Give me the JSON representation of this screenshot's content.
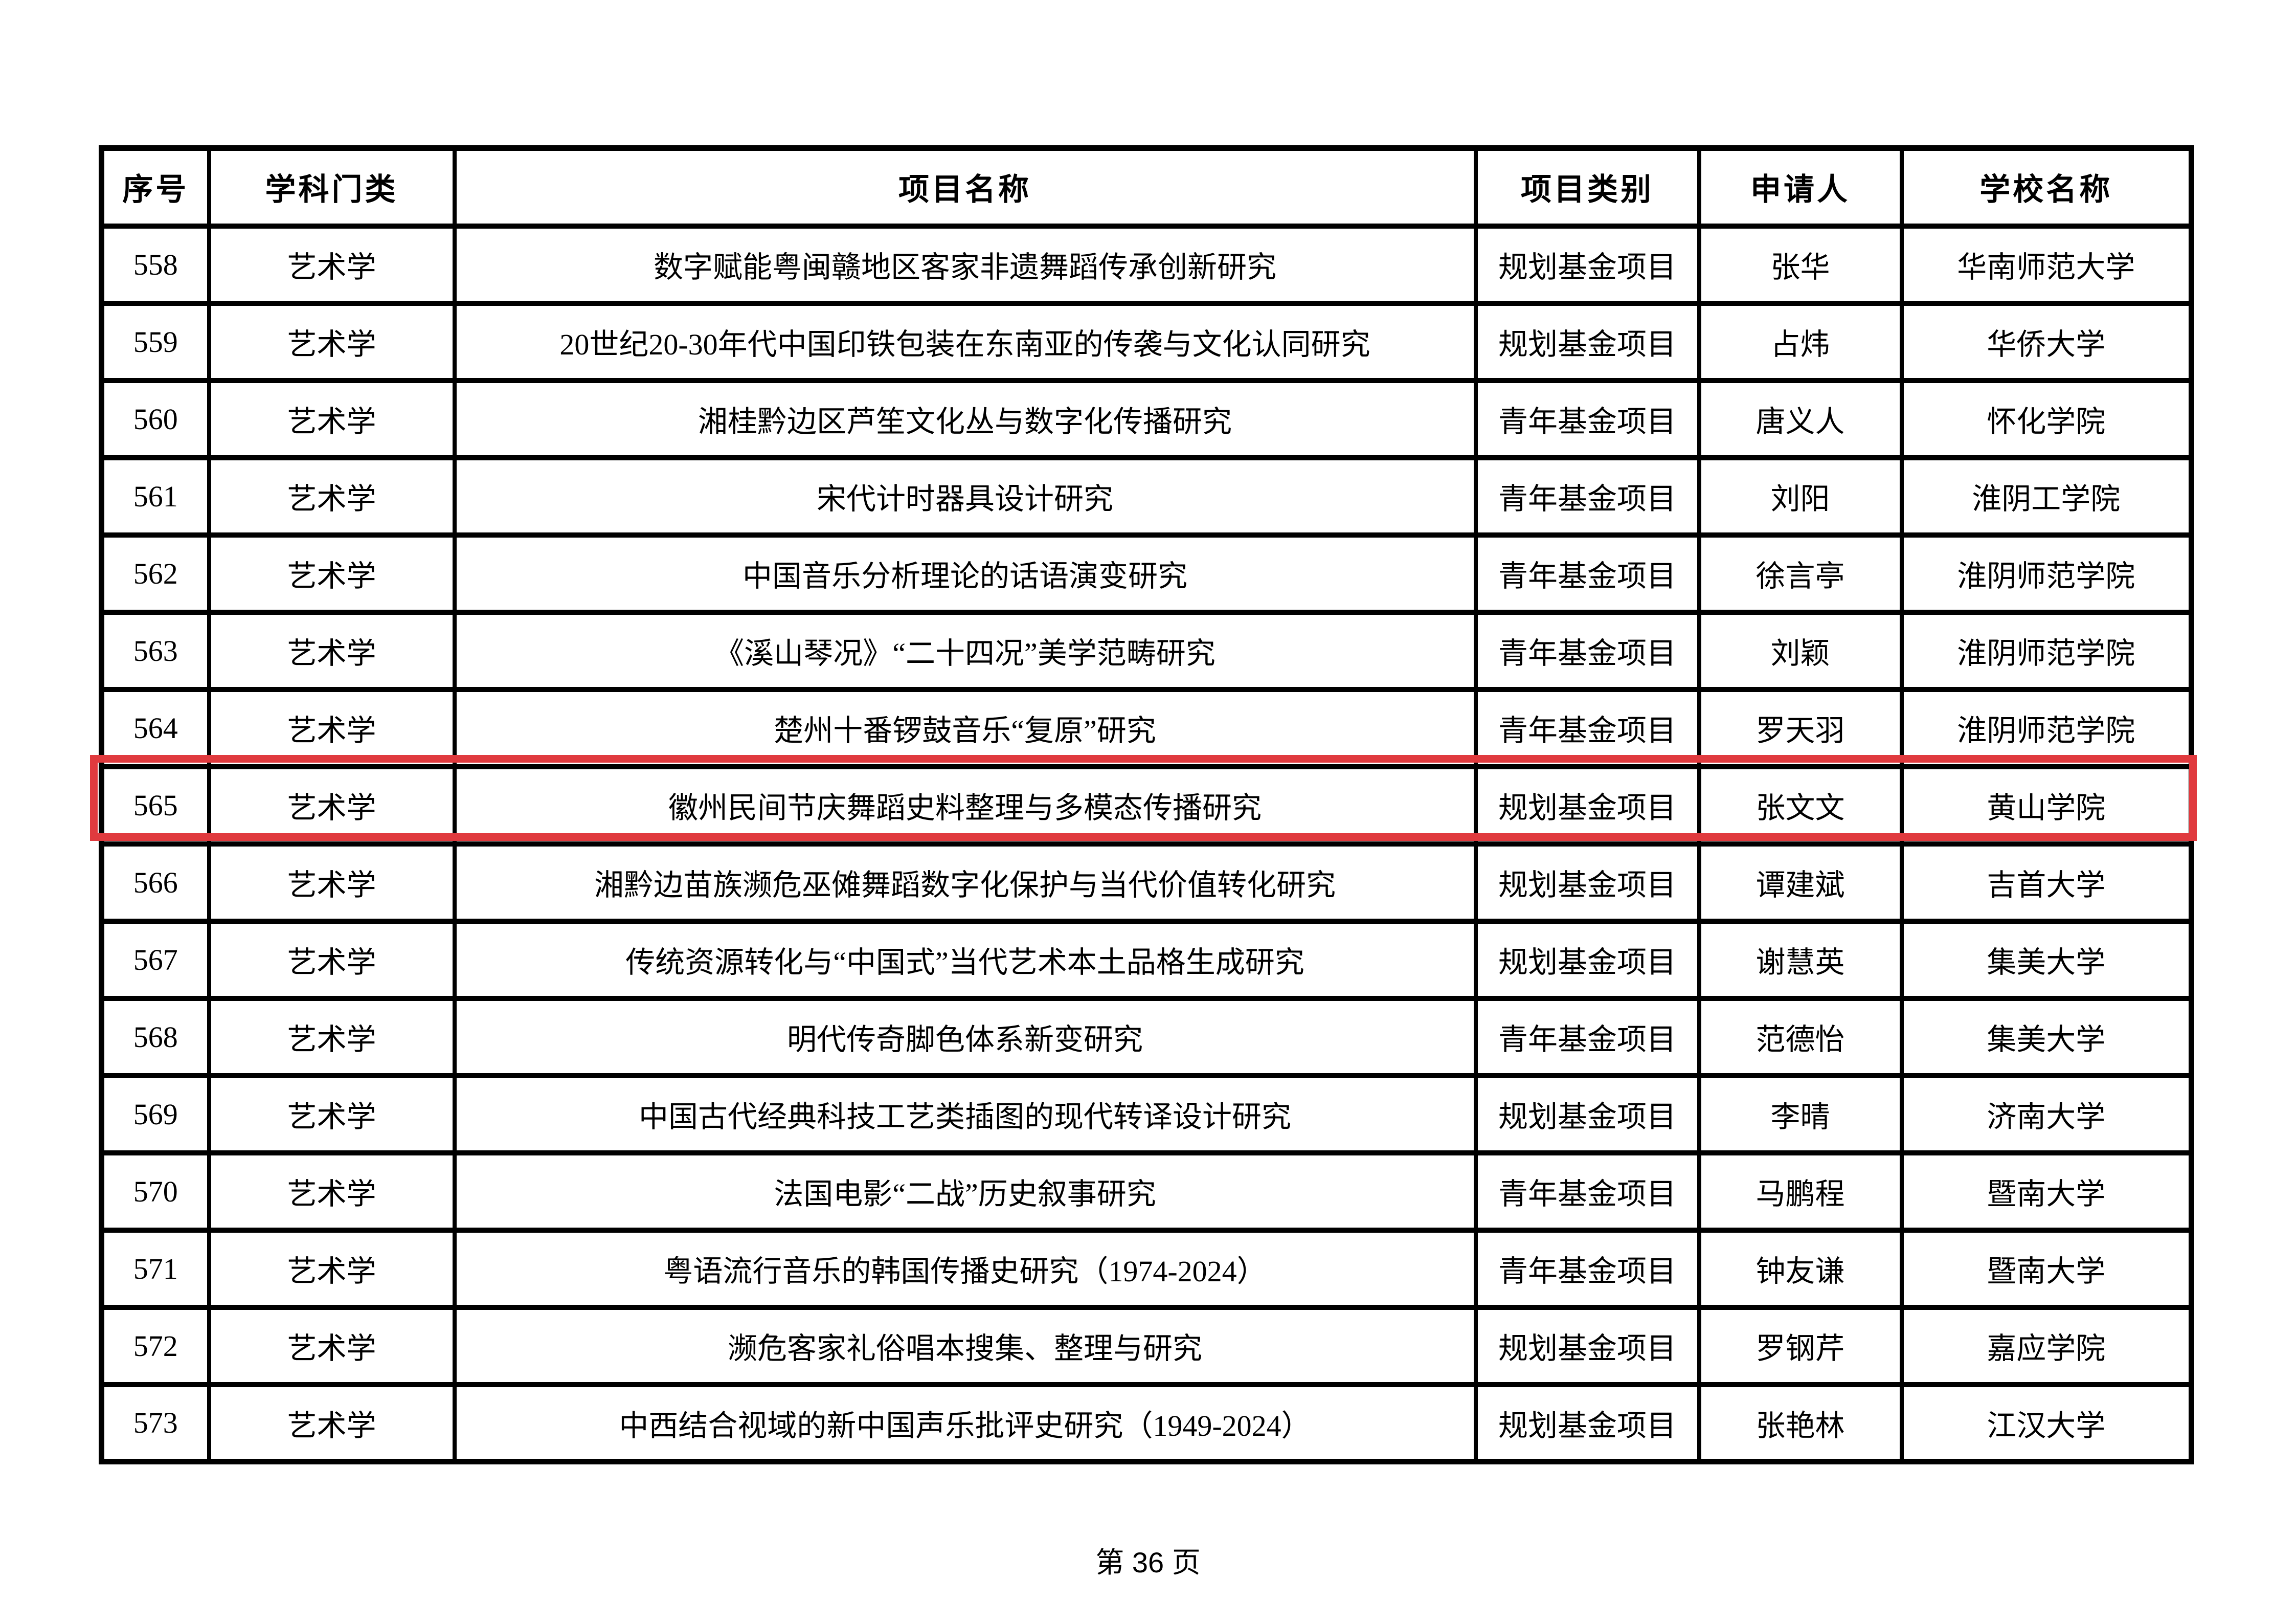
{
  "page": {
    "background_color": "#ffffff",
    "footer_text": "第 36 页"
  },
  "highlight": {
    "color": "#e03a3e",
    "highlighted_row_no": "565"
  },
  "table": {
    "headers": [
      "序号",
      "学科门类",
      "项目名称",
      "项目类别",
      "申请人",
      "学校名称"
    ],
    "rows": [
      {
        "no": "558",
        "discipline": "艺术学",
        "title": "数字赋能粤闽赣地区客家非遗舞蹈传承创新研究",
        "category": "规划基金项目",
        "applicant": "张华",
        "school": "华南师范大学",
        "highlighted": false
      },
      {
        "no": "559",
        "discipline": "艺术学",
        "title": "20世纪20-30年代中国印铁包装在东南亚的传袭与文化认同研究",
        "category": "规划基金项目",
        "applicant": "占炜",
        "school": "华侨大学",
        "highlighted": false
      },
      {
        "no": "560",
        "discipline": "艺术学",
        "title": "湘桂黔边区芦笙文化丛与数字化传播研究",
        "category": "青年基金项目",
        "applicant": "唐义人",
        "school": "怀化学院",
        "highlighted": false
      },
      {
        "no": "561",
        "discipline": "艺术学",
        "title": "宋代计时器具设计研究",
        "category": "青年基金项目",
        "applicant": "刘阳",
        "school": "淮阴工学院",
        "highlighted": false
      },
      {
        "no": "562",
        "discipline": "艺术学",
        "title": "中国音乐分析理论的话语演变研究",
        "category": "青年基金项目",
        "applicant": "徐言亭",
        "school": "淮阴师范学院",
        "highlighted": false
      },
      {
        "no": "563",
        "discipline": "艺术学",
        "title": "《溪山琴况》“二十四况”美学范畴研究",
        "category": "青年基金项目",
        "applicant": "刘颖",
        "school": "淮阴师范学院",
        "highlighted": false
      },
      {
        "no": "564",
        "discipline": "艺术学",
        "title": "楚州十番锣鼓音乐“复原”研究",
        "category": "青年基金项目",
        "applicant": "罗天羽",
        "school": "淮阴师范学院",
        "highlighted": false
      },
      {
        "no": "565",
        "discipline": "艺术学",
        "title": "徽州民间节庆舞蹈史料整理与多模态传播研究",
        "category": "规划基金项目",
        "applicant": "张文文",
        "school": "黄山学院",
        "highlighted": true
      },
      {
        "no": "566",
        "discipline": "艺术学",
        "title": "湘黔边苗族濒危巫傩舞蹈数字化保护与当代价值转化研究",
        "category": "规划基金项目",
        "applicant": "谭建斌",
        "school": "吉首大学",
        "highlighted": false
      },
      {
        "no": "567",
        "discipline": "艺术学",
        "title": "传统资源转化与“中国式”当代艺术本土品格生成研究",
        "category": "规划基金项目",
        "applicant": "谢慧英",
        "school": "集美大学",
        "highlighted": false
      },
      {
        "no": "568",
        "discipline": "艺术学",
        "title": "明代传奇脚色体系新变研究",
        "category": "青年基金项目",
        "applicant": "范德怡",
        "school": "集美大学",
        "highlighted": false
      },
      {
        "no": "569",
        "discipline": "艺术学",
        "title": "中国古代经典科技工艺类插图的现代转译设计研究",
        "category": "规划基金项目",
        "applicant": "李晴",
        "school": "济南大学",
        "highlighted": false
      },
      {
        "no": "570",
        "discipline": "艺术学",
        "title": "法国电影“二战”历史叙事研究",
        "category": "青年基金项目",
        "applicant": "马鹏程",
        "school": "暨南大学",
        "highlighted": false
      },
      {
        "no": "571",
        "discipline": "艺术学",
        "title": "粤语流行音乐的韩国传播史研究（1974-2024）",
        "category": "青年基金项目",
        "applicant": "钟友谦",
        "school": "暨南大学",
        "highlighted": false
      },
      {
        "no": "572",
        "discipline": "艺术学",
        "title": "濒危客家礼俗唱本搜集、整理与研究",
        "category": "规划基金项目",
        "applicant": "罗钢芹",
        "school": "嘉应学院",
        "highlighted": false
      },
      {
        "no": "573",
        "discipline": "艺术学",
        "title": "中西结合视域的新中国声乐批评史研究（1949-2024）",
        "category": "规划基金项目",
        "applicant": "张艳林",
        "school": "江汉大学",
        "highlighted": false
      }
    ]
  }
}
